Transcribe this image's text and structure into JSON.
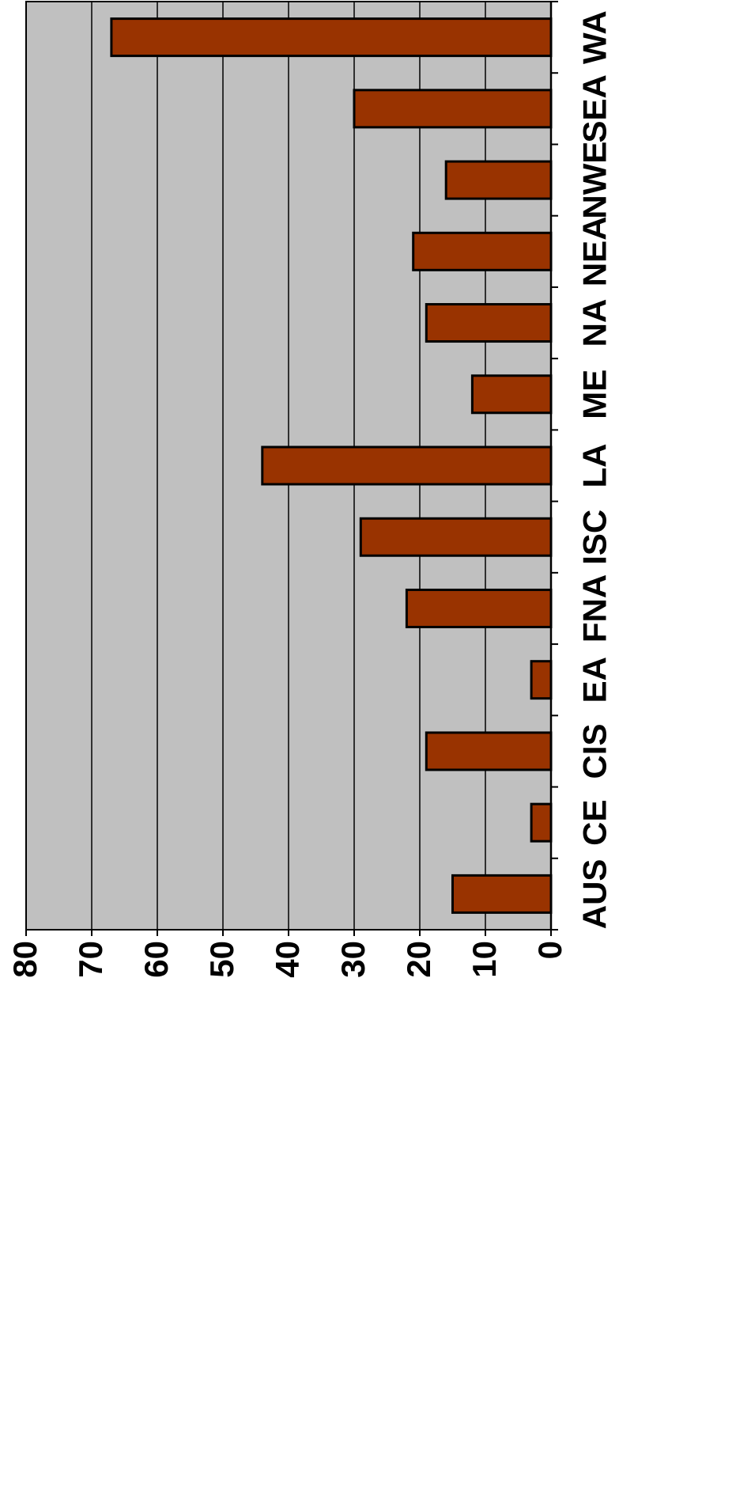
{
  "chart_data": {
    "type": "bar",
    "orientation": "horizontal",
    "categories": [
      "AUS",
      "CE",
      "CIS",
      "EA",
      "FNA",
      "ISC",
      "LA",
      "ME",
      "NA",
      "NEA",
      "NWE",
      "SEA",
      "WA"
    ],
    "values": [
      15,
      3,
      19,
      3,
      22,
      29,
      44,
      12,
      19,
      21,
      16,
      30,
      67
    ],
    "xlim": [
      0,
      80
    ],
    "ticks": [
      0,
      10,
      20,
      30,
      40,
      50,
      60,
      70,
      80
    ],
    "tick_labels": [
      "0",
      "10",
      "20",
      "30",
      "40",
      "50",
      "60",
      "70",
      "80"
    ],
    "grid": true,
    "legend": "none",
    "title": "",
    "xlabel": "",
    "ylabel": ""
  },
  "colors": {
    "bar": "#993300",
    "plot_background": "#c0c0c0",
    "gridline": "#000000"
  }
}
